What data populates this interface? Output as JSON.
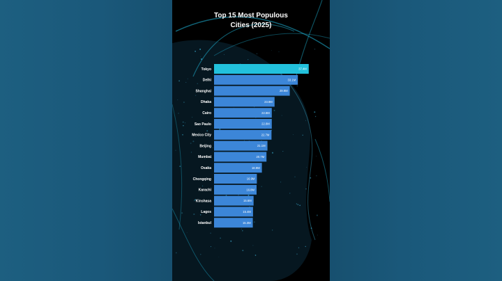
{
  "chart_data": {
    "type": "bar",
    "orientation": "horizontal",
    "title_line1": "Top 15 Most Populous",
    "title_line2": "Cities (2025)",
    "categories": [
      "Tokyo",
      "Delhi",
      "Shanghai",
      "Dhaka",
      "Cairo",
      "Sao Paulo",
      "Mexico City",
      "Beijing",
      "Mumbai",
      "Osaka",
      "Chongqing",
      "Karachi",
      "Kinshasa",
      "Lagos",
      "Istanbul"
    ],
    "values": [
      37.4,
      33.1,
      29.9,
      23.9,
      22.8,
      22.8,
      22.7,
      21.1,
      20.7,
      18.9,
      16.9,
      16.8,
      15.6,
      15.4,
      15.3
    ],
    "value_labels": [
      "37.4M",
      "33.1M",
      "29.9M",
      "23.9M",
      "22.8M",
      "22.8M",
      "22.7M",
      "21.1M",
      "20.7M",
      "18.9M",
      "16.9M",
      "16.8M",
      "15.6M",
      "15.4M",
      "15.3M"
    ],
    "xlim": [
      0,
      38
    ],
    "grid": false,
    "legend": "none",
    "colors": {
      "top_bar": "#22c1dc",
      "bars": "#3c86d8",
      "text": "#ffffff",
      "background": "#000000",
      "outer_background": "#17506f"
    }
  }
}
